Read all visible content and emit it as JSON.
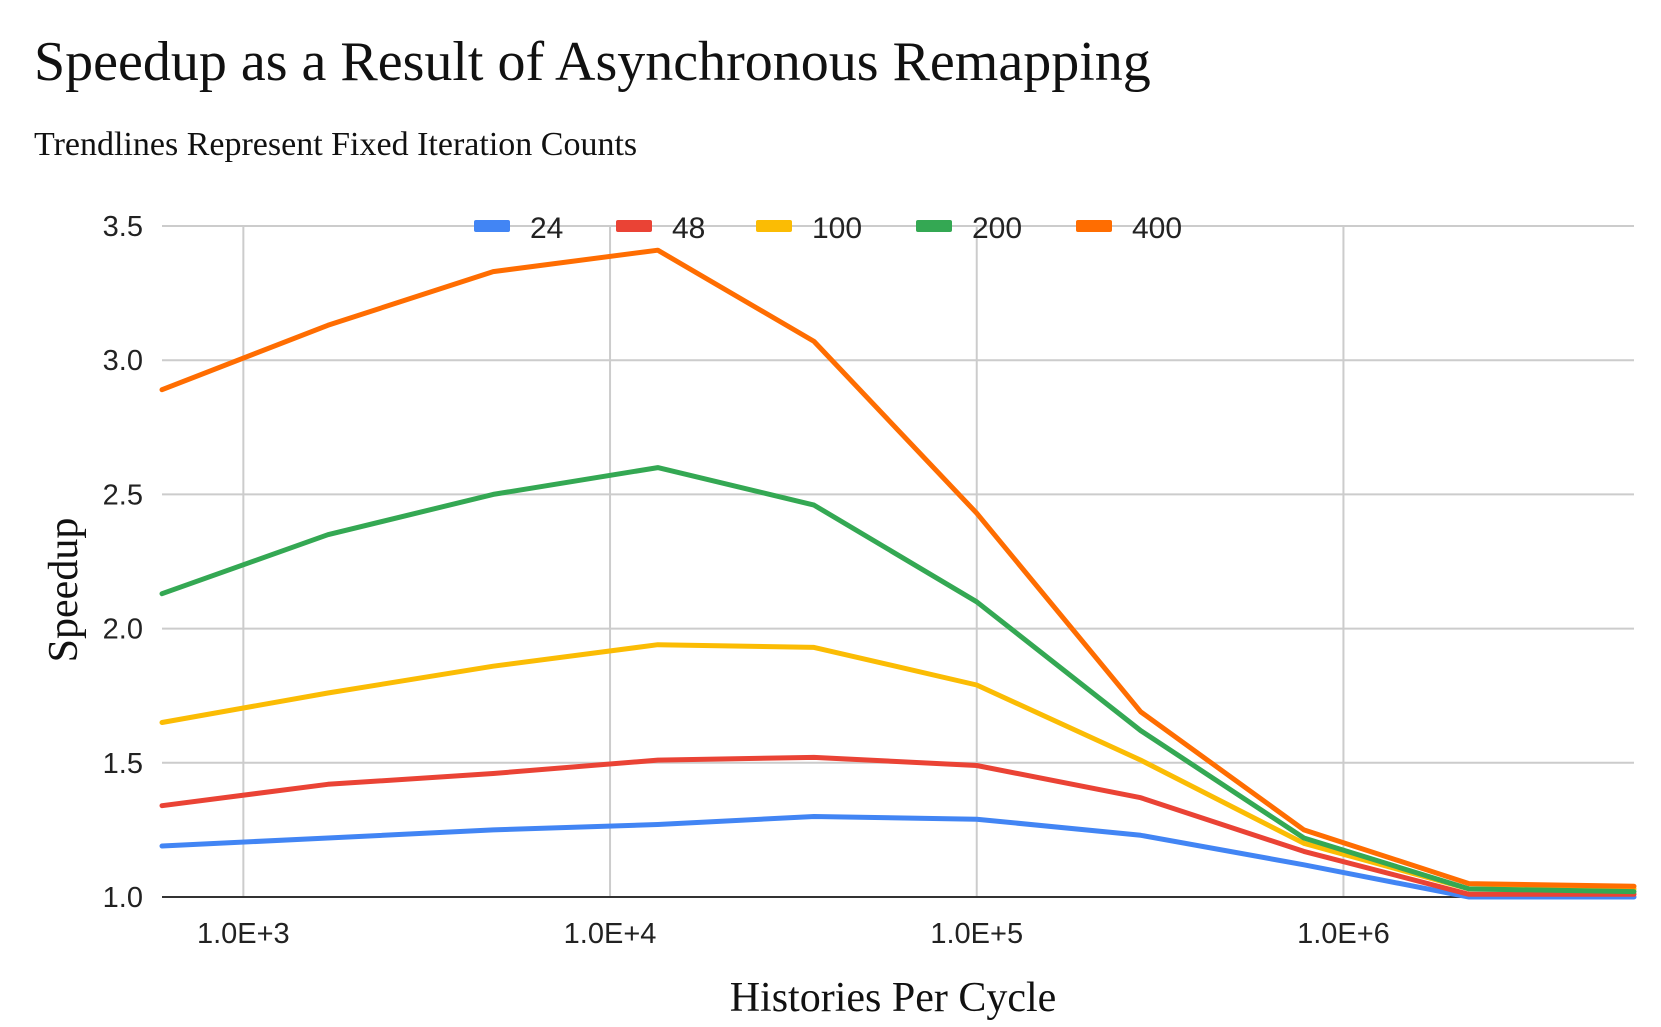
{
  "chart_data": {
    "type": "line",
    "title": "Speedup as a Result of Asynchronous Remapping",
    "subtitle": "Trendlines Represent Fixed Iteration Counts",
    "xlabel": "Histories Per Cycle",
    "ylabel": "Speedup",
    "xscale": "log",
    "x": [
      600,
      1700,
      4800,
      13500,
      36000,
      100000,
      280000,
      780000,
      2200000,
      6200000
    ],
    "xlim": [
      600,
      6200000
    ],
    "ylim": [
      1.0,
      3.5
    ],
    "yticks": [
      "1.0",
      "1.5",
      "2.0",
      "2.5",
      "3.0",
      "3.5"
    ],
    "xticks": [
      {
        "value": 1000,
        "label": "1.0E+3"
      },
      {
        "value": 10000,
        "label": "1.0E+4"
      },
      {
        "value": 100000,
        "label": "1.0E+5"
      },
      {
        "value": 1000000,
        "label": "1.0E+6"
      }
    ],
    "grid": true,
    "legend_position": "top",
    "series": [
      {
        "name": "24",
        "color": "#4285f4",
        "values": [
          1.19,
          1.22,
          1.25,
          1.27,
          1.3,
          1.29,
          1.23,
          1.12,
          1.0,
          1.0
        ]
      },
      {
        "name": "48",
        "color": "#ea4335",
        "values": [
          1.34,
          1.42,
          1.46,
          1.51,
          1.52,
          1.49,
          1.37,
          1.17,
          1.01,
          1.01
        ]
      },
      {
        "name": "100",
        "color": "#fbbc04",
        "values": [
          1.65,
          1.76,
          1.86,
          1.94,
          1.93,
          1.79,
          1.51,
          1.2,
          1.03,
          1.03
        ]
      },
      {
        "name": "200",
        "color": "#34a853",
        "values": [
          2.13,
          2.35,
          2.5,
          2.6,
          2.46,
          2.1,
          1.62,
          1.22,
          1.03,
          1.02
        ]
      },
      {
        "name": "400",
        "color": "#ff6d01",
        "values": [
          2.89,
          3.13,
          3.33,
          3.41,
          3.07,
          2.43,
          1.69,
          1.25,
          1.05,
          1.04
        ]
      }
    ]
  }
}
